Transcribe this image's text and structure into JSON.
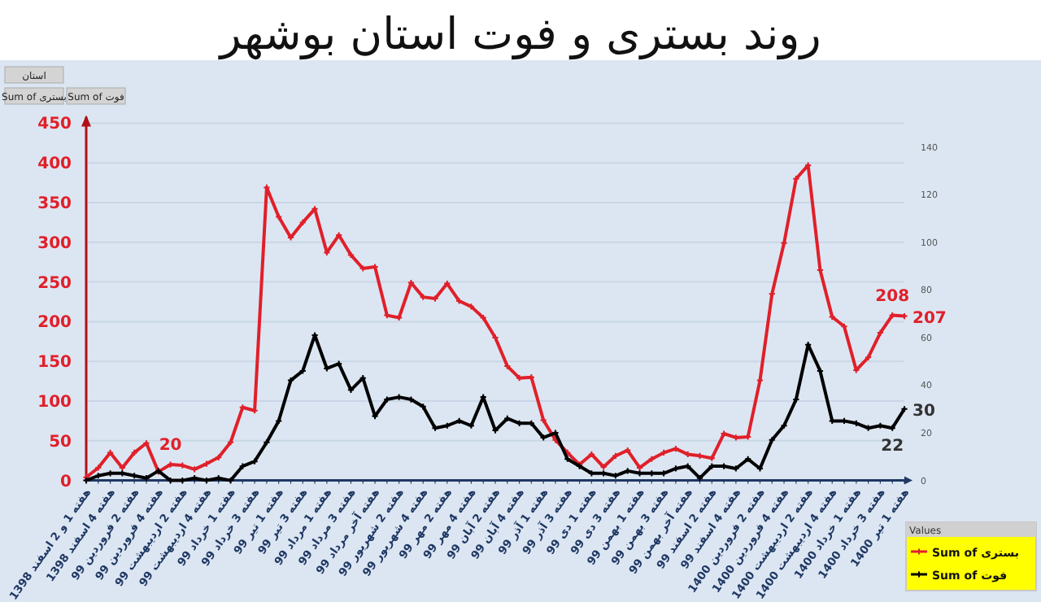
{
  "chart_data": {
    "type": "line",
    "title": "روند بستری و فوت استان بوشهر",
    "categories": [
      "هفته 1 و 2 اسفند 1398",
      null,
      "هفته 4 اسفند 1398",
      null,
      "هفته 2 فروردین 99",
      null,
      "هفته 4 فروردین 99",
      null,
      "هفته 2 اردیبهشت 99",
      null,
      "هفته 4 اردیبهشت 99",
      null,
      "هفته 1 خرداد 99",
      null,
      "هفته 3 خرداد 99",
      null,
      "هفته 1 تیر 99",
      null,
      "هفته 3 تیر 99",
      null,
      "هفته 1 مرداد 99",
      null,
      "هفته 3 مرداد 99",
      null,
      "هفته آخر مرداد 99",
      null,
      "هفته 2 شهریور 99",
      null,
      "هفته 4 شهریور 99",
      null,
      "هفته 2 مهر 99",
      null,
      "هفته 4 مهر 99",
      null,
      "هفته 2 آبان 99",
      null,
      "هفته 4 آبان 99",
      null,
      "هفته 1 آذر 99",
      null,
      "هفته 3 آذر 99",
      null,
      "هفته 1 دی 99",
      null,
      "هفته 3 دی 99",
      null,
      "هفته 1 بهمن 99",
      null,
      "هفته 3 بهمن 99",
      null,
      "هفته آخر بهمن 99",
      null,
      "هفته 2 اسفند 99",
      null,
      "هفته 4 اسفند 99",
      null,
      "هفته 2 فروردین 1400",
      null,
      "هفته 4 فروردین 1400",
      null,
      "هفته 2 اردیبهشت 1400",
      null,
      "هفته 4 اردیبهشت 1400",
      null,
      "هفته 1 خرداد 1400",
      null,
      "هفته 3 خرداد 1400",
      null,
      "هفته 1 تیر 1400"
    ],
    "series": [
      {
        "name": "Sum of بستری",
        "color": "#e0202a",
        "values": [
          4,
          16,
          35,
          16,
          35,
          47,
          11,
          20,
          19,
          14,
          21,
          29,
          48,
          92,
          88,
          369,
          332,
          306,
          325,
          342,
          287,
          309,
          284,
          267,
          269,
          208,
          205,
          249,
          231,
          229,
          248,
          226,
          219,
          205,
          180,
          144,
          129,
          130,
          76,
          51,
          35,
          20,
          33,
          17,
          31,
          38,
          16,
          27,
          35,
          40,
          33,
          31,
          28,
          59,
          54,
          55,
          126,
          235,
          299,
          380,
          397,
          265,
          206,
          194,
          139,
          155,
          186,
          208,
          207
        ],
        "value_labels": [
          null,
          null,
          null,
          null,
          null,
          null,
          null,
          "20",
          null,
          null,
          null,
          null,
          null,
          null,
          null,
          null,
          null,
          null,
          null,
          null,
          null,
          null,
          null,
          null,
          null,
          null,
          null,
          null,
          null,
          null,
          null,
          null,
          null,
          null,
          null,
          null,
          null,
          null,
          null,
          null,
          null,
          null,
          null,
          null,
          null,
          null,
          null,
          null,
          null,
          null,
          null,
          null,
          null,
          null,
          null,
          null,
          null,
          null,
          null,
          null,
          null,
          null,
          null,
          null,
          null,
          null,
          null,
          "208",
          "207"
        ]
      },
      {
        "name": "Sum of فوت",
        "color": "#000000",
        "axis": "y2",
        "values": [
          0,
          2,
          3,
          3,
          2,
          1,
          4,
          0,
          0,
          1,
          0,
          1,
          0,
          6,
          8,
          16,
          25,
          42,
          46,
          61,
          47,
          49,
          38,
          43,
          27,
          34,
          35,
          34,
          31,
          22,
          23,
          25,
          23,
          35,
          21,
          26,
          24,
          24,
          18,
          20,
          9,
          6,
          3,
          3,
          2,
          4,
          3,
          3,
          3,
          5,
          6,
          1,
          6,
          6,
          5,
          9,
          5,
          17,
          23,
          34,
          57,
          46,
          25,
          25,
          24,
          22,
          23,
          22,
          30
        ],
        "value_labels": [
          null,
          null,
          null,
          null,
          null,
          null,
          null,
          null,
          null,
          null,
          null,
          null,
          null,
          null,
          null,
          null,
          null,
          null,
          null,
          null,
          null,
          null,
          null,
          null,
          null,
          null,
          null,
          null,
          null,
          null,
          null,
          null,
          null,
          null,
          null,
          null,
          null,
          null,
          null,
          null,
          null,
          null,
          null,
          null,
          null,
          null,
          null,
          null,
          null,
          null,
          null,
          null,
          null,
          null,
          null,
          null,
          null,
          null,
          null,
          null,
          null,
          null,
          null,
          null,
          null,
          null,
          null,
          "22",
          "30"
        ]
      }
    ],
    "ylim": [
      0,
      450
    ],
    "yticks": [
      0,
      50,
      100,
      150,
      200,
      250,
      300,
      350,
      400,
      450
    ],
    "y2lim": [
      0,
      150
    ],
    "y2ticks": [
      0,
      20,
      40,
      60,
      80,
      100,
      120,
      140
    ],
    "grid": "y",
    "legend": "bottom right",
    "legend_title": "Values",
    "marker": "cross",
    "annotations": [
      "استان",
      "Sum of بستری",
      "Sum of فوت"
    ]
  }
}
